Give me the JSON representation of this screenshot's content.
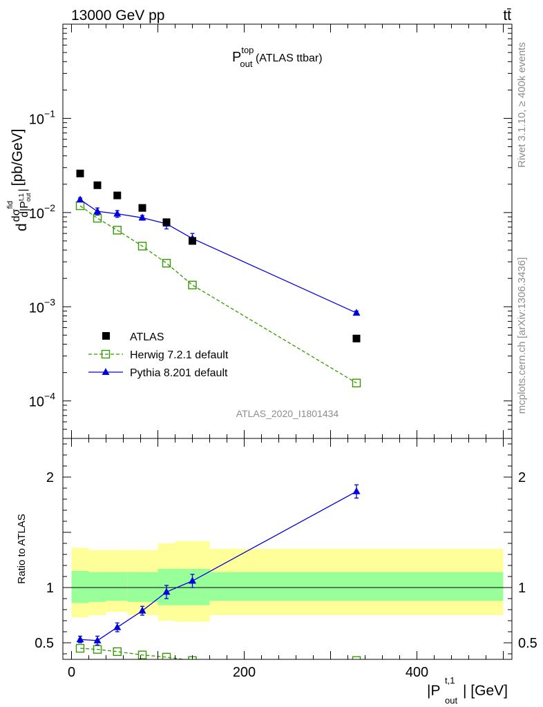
{
  "header": {
    "energy": "13000 GeV pp",
    "process": "tt̄"
  },
  "side_text": {
    "rivet": "Rivet 3.1.10, ≥ 400k events",
    "mcplots": "mcplots.cern.ch [arXiv:1306.3436]"
  },
  "main_title": {
    "base": "P",
    "sup": "top",
    "sub": "out",
    "rest": " (ATLAS ttbar)"
  },
  "analysis_id": "ATLAS_2020_I1801434",
  "colors": {
    "atlas": "#000000",
    "herwig": "#339900",
    "pythia": "#0000dd",
    "band_inner": "#99ff99",
    "band_outer": "#ffff99"
  },
  "chart_data": [
    {
      "type": "scatter",
      "panel": "main",
      "log_y": true,
      "xlim": [
        -10,
        510
      ],
      "ylim": [
        4e-05,
        1
      ],
      "ylabel": "d dσ^{fid} / d|P^{t,1}_{out}| [pb/GeV]",
      "y_ticks": [
        {
          "value": 0.1,
          "mant": "10",
          "exp": "−1"
        },
        {
          "value": 0.01,
          "mant": "10",
          "exp": "−2"
        },
        {
          "value": 0.001,
          "mant": "10",
          "exp": "−3"
        },
        {
          "value": 0.0001,
          "mant": "10",
          "exp": "−4"
        }
      ],
      "legend_position": "lower-left",
      "series": [
        {
          "name": "ATLAS",
          "style": "square",
          "x": [
            10,
            30,
            53,
            82,
            110,
            140,
            330
          ],
          "y": [
            0.026,
            0.0195,
            0.0152,
            0.0112,
            0.0079,
            0.005,
            0.00046
          ]
        },
        {
          "name": "Herwig 7.2.1 default",
          "style": "open-square-dashed",
          "x": [
            10,
            30,
            53,
            82,
            110,
            140,
            330
          ],
          "y": [
            0.0118,
            0.0087,
            0.0065,
            0.0044,
            0.0029,
            0.0017,
            0.000155
          ]
        },
        {
          "name": "Pythia 8.201 default",
          "style": "triangle-line",
          "x": [
            10,
            30,
            53,
            82,
            110,
            140,
            330
          ],
          "y": [
            0.0137,
            0.0103,
            0.0097,
            0.0088,
            0.0076,
            0.0053,
            0.00086
          ],
          "err_up": [
            0.0006,
            0.0009,
            0.0008,
            0.0005,
            0.0009,
            0.0007,
            4e-05
          ],
          "err_down": [
            0.0006,
            0.0009,
            0.0008,
            0.0005,
            0.0009,
            0.0007,
            4e-05
          ]
        }
      ]
    },
    {
      "type": "line",
      "panel": "ratio",
      "xlim": [
        -10,
        510
      ],
      "ylim": [
        0.35,
        2.35
      ],
      "xlabel": "|P^{t,1}_{out}| [GeV]",
      "ylabel": "Ratio to ATLAS",
      "x_ticks": [
        0,
        200,
        400
      ],
      "y_ticks": [
        0.5,
        1,
        2
      ],
      "reference_line": 1,
      "bands": {
        "bin_edges": [
          0,
          20,
          40,
          65,
          100,
          120,
          160,
          500
        ],
        "inner_low": [
          0.86,
          0.87,
          0.88,
          0.87,
          0.84,
          0.84,
          0.88
        ],
        "inner_high": [
          1.15,
          1.14,
          1.14,
          1.14,
          1.17,
          1.17,
          1.14
        ],
        "outer_low": [
          0.73,
          0.75,
          0.78,
          0.75,
          0.7,
          0.69,
          0.75
        ],
        "outer_high": [
          1.36,
          1.34,
          1.34,
          1.34,
          1.4,
          1.42,
          1.35
        ]
      },
      "series": [
        {
          "name": "Herwig 7.2.1 default",
          "style": "open-square-dashed",
          "x": [
            10,
            30,
            53,
            82,
            110,
            140,
            330
          ],
          "y": [
            0.45,
            0.44,
            0.42,
            0.39,
            0.37,
            0.34,
            0.34
          ]
        },
        {
          "name": "Pythia 8.201 default",
          "style": "triangle-line",
          "x": [
            10,
            30,
            53,
            82,
            110,
            140,
            330
          ],
          "y": [
            0.53,
            0.52,
            0.64,
            0.79,
            0.96,
            1.06,
            1.87
          ],
          "err_up": [
            0.03,
            0.04,
            0.04,
            0.04,
            0.06,
            0.06,
            0.06
          ],
          "err_down": [
            0.03,
            0.04,
            0.04,
            0.04,
            0.06,
            0.06,
            0.06
          ]
        }
      ]
    }
  ]
}
